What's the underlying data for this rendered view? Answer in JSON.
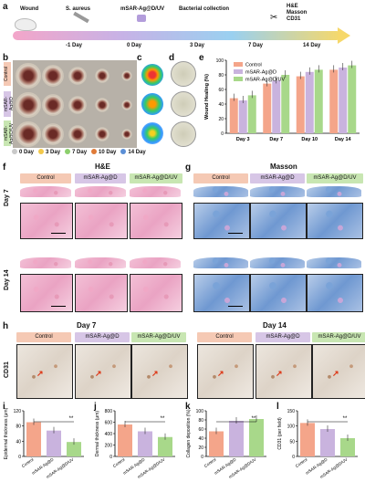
{
  "panel_labels": {
    "a": "a",
    "b": "b",
    "c": "c",
    "d": "d",
    "e": "e",
    "f": "f",
    "g": "g",
    "h": "h",
    "i": "i",
    "j": "j",
    "k": "k",
    "l": "l"
  },
  "timeline": {
    "steps": [
      "Wound",
      "S. aureus",
      "mSAR-Ag@D/UV",
      "Bacterial collection",
      "H&E\nMasson\nCD31"
    ],
    "days": [
      "-1 Day",
      "0 Day",
      "3 Day",
      "7 Day",
      "14 Day"
    ]
  },
  "groups": [
    "Control",
    "mSAR-Ag@D",
    "mSAR-Ag@D/UV"
  ],
  "legend_days": [
    "0 Day",
    "3 Day",
    "7 Day",
    "10 Day",
    "14 Day"
  ],
  "legend_colors": [
    "#c9c9c9",
    "#f2c84b",
    "#8ccf6c",
    "#e07b39",
    "#5b8fd6"
  ],
  "panel_f_title": "H&E",
  "panel_g_title": "Masson",
  "row_days": [
    "Day 7",
    "Day 14"
  ],
  "panel_h": {
    "day7": "Day 7",
    "day14": "Day 14",
    "ylabel": "CD31"
  },
  "colors": {
    "control": "#f4a58a",
    "d": "#c9b3de",
    "duv": "#a8d88a"
  },
  "chart_data": [
    {
      "type": "bar",
      "panel": "e",
      "ylabel": "Wound Healing (%)",
      "categories": [
        "Day 3",
        "Day 7",
        "Day 10",
        "Day 14"
      ],
      "ylim": [
        0,
        100
      ],
      "series": [
        {
          "name": "Control",
          "values": [
            48,
            68,
            78,
            87
          ]
        },
        {
          "name": "mSAR-Ag@D",
          "values": [
            45,
            72,
            84,
            90
          ]
        },
        {
          "name": "mSAR-Ag@D/UV",
          "values": [
            52,
            80,
            87,
            93
          ]
        }
      ],
      "yticks": [
        "0",
        "20",
        "40",
        "60",
        "80",
        "100"
      ]
    },
    {
      "type": "bar",
      "panel": "i",
      "ylabel": "Epidermal thickness (μm)",
      "categories": [
        "Control",
        "mSAR-Ag@D",
        "mSAR-Ag@D/UV"
      ],
      "values": [
        90,
        68,
        38
      ],
      "ylim": [
        0,
        120
      ],
      "yticks": [
        "0",
        "40",
        "80",
        "120"
      ],
      "sig": "**"
    },
    {
      "type": "bar",
      "panel": "j",
      "ylabel": "Dermal thickness (μm)",
      "categories": [
        "Control",
        "mSAR-Ag@D",
        "mSAR-Ag@D/UV"
      ],
      "values": [
        560,
        440,
        340
      ],
      "ylim": [
        0,
        800
      ],
      "yticks": [
        "0",
        "200",
        "400",
        "600",
        "800"
      ],
      "sig": [
        "*",
        "**"
      ]
    },
    {
      "type": "bar",
      "panel": "k",
      "ylabel": "Collagen deposition (%)",
      "categories": [
        "Control",
        "mSAR-Ag@D",
        "mSAR-Ag@D/UV"
      ],
      "values": [
        55,
        78,
        82
      ],
      "ylim": [
        0,
        100
      ],
      "yticks": [
        "0",
        "20",
        "40",
        "60",
        "80",
        "100"
      ],
      "sig": "**"
    },
    {
      "type": "bar",
      "panel": "l",
      "ylabel": "CD31 (per field)",
      "categories": [
        "Control",
        "mSAR-Ag@D",
        "mSAR-Ag@D/UV"
      ],
      "values": [
        110,
        90,
        60
      ],
      "ylim": [
        0,
        150
      ],
      "yticks": [
        "0",
        "50",
        "100",
        "150"
      ],
      "sig": "**"
    }
  ]
}
